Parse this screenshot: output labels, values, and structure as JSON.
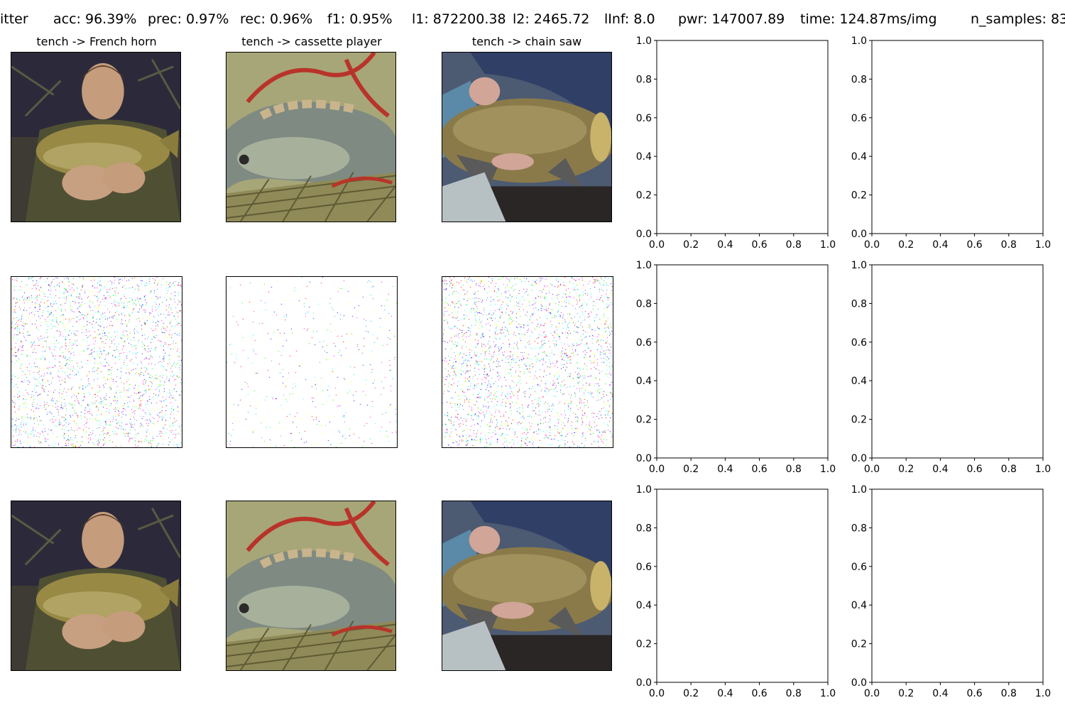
{
  "header": {
    "method_fragment": "itter",
    "acc": "acc: 96.39%",
    "prec": "prec: 0.97%",
    "rec": "rec: 0.96%",
    "f1": "f1: 0.95%",
    "l1": "l1: 872200.38",
    "l2": "l2: 2465.72",
    "linf": "lInf: 8.0",
    "pwr": "pwr: 147007.89",
    "time": "time: 124.87ms/img",
    "n_samples": "n_samples: 83"
  },
  "columns": [
    {
      "title": "tench -> French horn"
    },
    {
      "title": "tench -> cassette player"
    },
    {
      "title": "tench -> chain saw"
    }
  ],
  "chart_data": {
    "type": "scatter",
    "empty_axes_count": 6,
    "xlim": [
      0.0,
      1.0
    ],
    "ylim": [
      0.0,
      1.0
    ],
    "xticks": [
      "0.0",
      "0.2",
      "0.4",
      "0.6",
      "0.8",
      "1.0"
    ],
    "yticks": [
      "0.0",
      "0.2",
      "0.4",
      "0.6",
      "0.8",
      "1.0"
    ],
    "series": []
  },
  "colors": {
    "noise_palette": [
      "#ff00ff",
      "#00ffff",
      "#ffff00",
      "#0000ff",
      "#ff0000",
      "#00ff00",
      "#00a0ff"
    ],
    "axes_line": "#000000"
  }
}
